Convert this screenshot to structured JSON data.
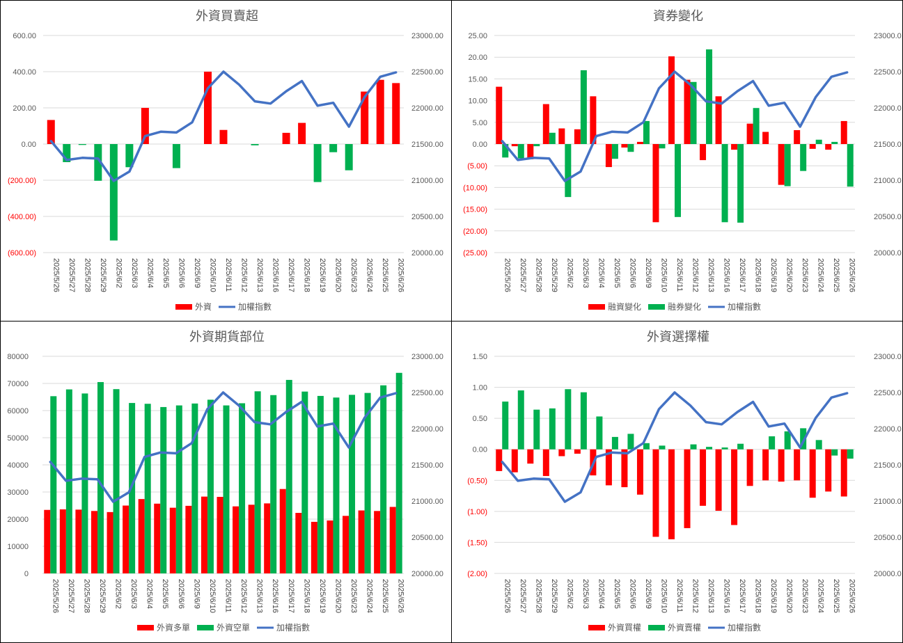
{
  "dates": [
    "2025/5/26",
    "2025/5/27",
    "2025/5/28",
    "2025/5/29",
    "2025/6/2",
    "2025/6/3",
    "2025/6/4",
    "2025/6/5",
    "2025/6/6",
    "2025/6/9",
    "2025/6/10",
    "2025/6/11",
    "2025/6/12",
    "2025/6/13",
    "2025/6/16",
    "2025/6/17",
    "2025/6/18",
    "2025/6/19",
    "2025/6/20",
    "2025/6/23",
    "2025/6/24",
    "2025/6/25",
    "2025/6/26"
  ],
  "index_series": {
    "name": "加權指數",
    "values": [
      21540,
      21280,
      21310,
      21300,
      20990,
      21120,
      21610,
      21670,
      21660,
      21800,
      22270,
      22500,
      22320,
      22090,
      22060,
      22230,
      22370,
      22030,
      22070,
      21740,
      22150,
      22430,
      22490
    ]
  },
  "colors": {
    "pos": "#ff0000",
    "neg": "#00b050",
    "line": "#4472c4",
    "grid": "#d9d9d9",
    "tick": "#595959",
    "tick_neg": "#ff0000"
  },
  "chart_data": [
    {
      "type": "bar",
      "title": "外資買賣超",
      "bar_mode": "signed",
      "ylim": [
        -600,
        600
      ],
      "yticks": [
        "(600.00)",
        "(400.00)",
        "(200.00)",
        "0.00",
        "200.00",
        "400.00",
        "600.00"
      ],
      "y2lim": [
        20000,
        23000
      ],
      "y2ticks": [
        "20000.00",
        "20500.00",
        "21000.00",
        "21500.00",
        "22000.00",
        "22500.00",
        "23000.00"
      ],
      "series": [
        {
          "name": "外資",
          "values": [
            133,
            -100,
            -5,
            -203,
            -533,
            -128,
            200,
            0,
            -133,
            0,
            400,
            78,
            0,
            -7,
            0,
            62,
            117,
            -210,
            -45,
            -145,
            290,
            355,
            337
          ]
        }
      ]
    },
    {
      "type": "bar",
      "title": "資券變化",
      "bar_mode": "grouped",
      "ylim": [
        -25,
        25
      ],
      "yticks": [
        "(25.00)",
        "(20.00)",
        "(15.00)",
        "(10.00)",
        "(5.00)",
        "0.00",
        "5.00",
        "10.00",
        "15.00",
        "20.00",
        "25.00"
      ],
      "y2lim": [
        20000,
        23000
      ],
      "y2ticks": [
        "20000.00",
        "20500.00",
        "21000.00",
        "21500.00",
        "22000.00",
        "22500.00",
        "23000.00"
      ],
      "series": [
        {
          "name": "融資變化",
          "values": [
            13.2,
            -0.5,
            -3.5,
            9.2,
            3.6,
            3.4,
            11.0,
            -5.3,
            -0.8,
            0.5,
            -18.0,
            20.2,
            14.8,
            -3.7,
            11.0,
            -1.3,
            4.7,
            2.8,
            -9.4,
            3.2,
            -1.1,
            -1.3,
            5.3
          ]
        },
        {
          "name": "融券變化",
          "values": [
            -3.1,
            -3.3,
            -0.5,
            2.6,
            -12.2,
            17.0,
            0,
            -3.4,
            -1.8,
            5.3,
            -1.0,
            -16.8,
            14.3,
            21.8,
            -18.0,
            -18.1,
            8.3,
            0,
            -9.7,
            -6.2,
            1.0,
            0.5,
            -9.8
          ]
        }
      ]
    },
    {
      "type": "bar",
      "title": "外資期貨部位",
      "bar_mode": "grouped",
      "ylim": [
        0,
        80000
      ],
      "yticks": [
        "0",
        "10000",
        "20000",
        "30000",
        "40000",
        "50000",
        "60000",
        "70000",
        "80000"
      ],
      "y2lim": [
        20000,
        23000
      ],
      "y2ticks": [
        "20000.00",
        "20500.00",
        "21000.00",
        "21500.00",
        "22000.00",
        "22500.00",
        "23000.00"
      ],
      "series": [
        {
          "name": "外資多單",
          "values": [
            23400,
            23600,
            23500,
            23000,
            22600,
            25000,
            27400,
            25700,
            24200,
            24900,
            28300,
            28200,
            24700,
            25300,
            25800,
            31100,
            22300,
            19000,
            19500,
            21200,
            23200,
            23000,
            24500
          ]
        },
        {
          "name": "外資空單",
          "values": [
            65300,
            67800,
            66300,
            70500,
            67900,
            62800,
            62500,
            61300,
            61900,
            62600,
            64000,
            61900,
            62700,
            67100,
            65700,
            71300,
            67000,
            65400,
            64800,
            65800,
            66500,
            69300,
            73900
          ]
        }
      ]
    },
    {
      "type": "bar",
      "title": "外資選擇權",
      "bar_mode": "grouped",
      "ylim": [
        -2,
        1.5
      ],
      "yticks": [
        "(2.00)",
        "(1.50)",
        "(1.00)",
        "(0.50)",
        "0.00",
        "0.50",
        "1.00",
        "1.50"
      ],
      "y2lim": [
        20000,
        23000
      ],
      "y2ticks": [
        "20000.00",
        "20500.00",
        "21000.00",
        "21500.00",
        "22000.00",
        "22500.00",
        "23000.00"
      ],
      "series": [
        {
          "name": "外資買權",
          "values": [
            -0.35,
            -0.37,
            -0.23,
            -0.43,
            -0.11,
            -0.07,
            -0.42,
            -0.58,
            -0.61,
            -0.73,
            -1.41,
            -1.45,
            -1.27,
            -0.91,
            -0.99,
            -1.22,
            -0.59,
            -0.5,
            -0.52,
            -0.5,
            -0.78,
            -0.68,
            -0.76
          ]
        },
        {
          "name": "外資賣權",
          "values": [
            0.77,
            0.95,
            0.64,
            0.66,
            0.97,
            0.92,
            0.53,
            0.2,
            0.25,
            0.1,
            0.06,
            0,
            0.08,
            0.04,
            0.03,
            0.09,
            0,
            0.21,
            0.29,
            0.34,
            0.15,
            -0.1,
            -0.15
          ]
        }
      ]
    }
  ]
}
